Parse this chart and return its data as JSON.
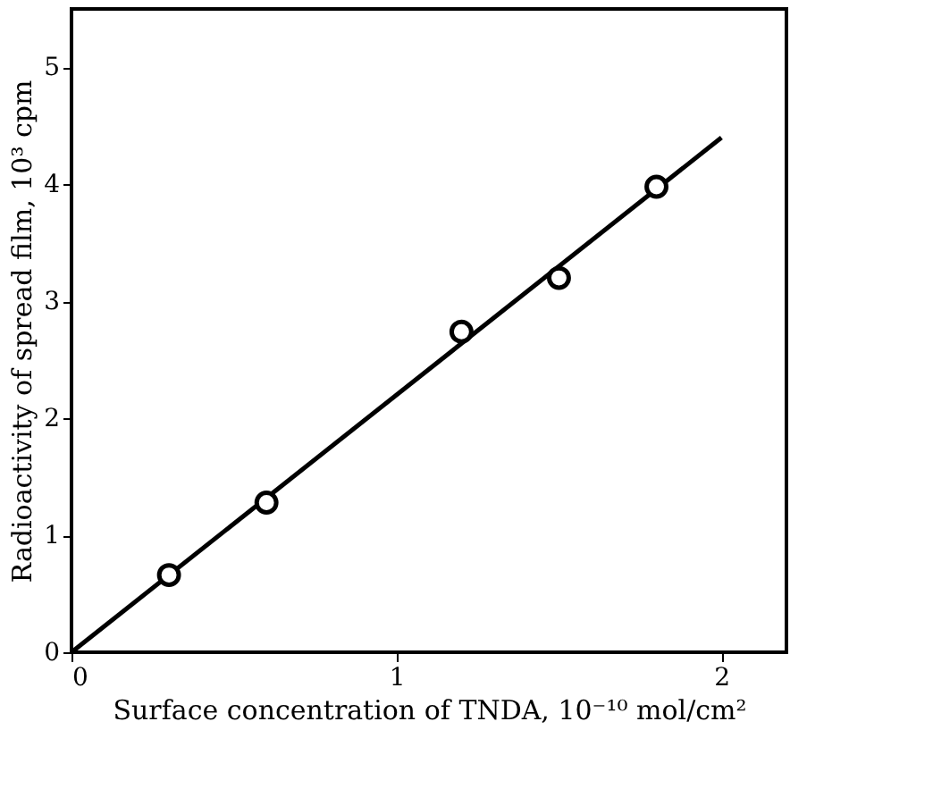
{
  "chart_data": {
    "type": "scatter",
    "xlabel": "Surface concentration of TNDA, 10⁻¹⁰ mol/cm²",
    "ylabel": "Radioactivity of spread film, 10³ cpm",
    "x": [
      0.3,
      0.6,
      1.2,
      1.5,
      1.8
    ],
    "series": [
      {
        "color": "#000000",
        "values": [
          0.66,
          1.28,
          2.74,
          3.2,
          3.98
        ],
        "marker": "circle"
      },
      {
        "type": "line",
        "color": "#000000",
        "x": [
          0,
          2
        ],
        "values": [
          0,
          4.4
        ],
        "marker": "none"
      }
    ],
    "xlim": [
      0,
      2.2
    ],
    "ylim": [
      0,
      5.5
    ],
    "xticks": [
      0,
      1,
      2
    ],
    "yticks": [
      0,
      1,
      2,
      3,
      4,
      5
    ],
    "grid": false
  }
}
